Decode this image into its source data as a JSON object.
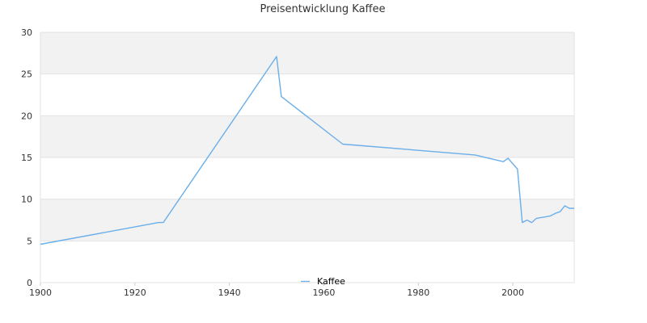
{
  "chart_data": {
    "type": "line",
    "title": "Preisentwicklung Kaffee",
    "xlabel": "",
    "ylabel": "",
    "xlim": [
      1900,
      2013
    ],
    "ylim": [
      0,
      30
    ],
    "x_ticks": [
      "1900",
      "1920",
      "1940",
      "1960",
      "1980",
      "2000"
    ],
    "y_ticks": [
      "0",
      "5",
      "10",
      "15",
      "20",
      "25",
      "30"
    ],
    "grid": "horizontal bands",
    "legend_position": "bottom",
    "series": [
      {
        "name": "Kaffee",
        "color": "#6aaeea",
        "x": [
          1900,
          1925,
          1926,
          1950,
          1951,
          1964,
          1992,
          1998,
          1999,
          2001,
          2002,
          2003,
          2004,
          2005,
          2006,
          2007,
          2008,
          2009,
          2010,
          2011,
          2012,
          2013
        ],
        "y": [
          4.6,
          7.2,
          7.2,
          27.1,
          22.3,
          16.6,
          15.3,
          14.5,
          14.9,
          13.6,
          7.2,
          7.5,
          7.2,
          7.7,
          7.8,
          7.9,
          8.0,
          8.3,
          8.5,
          9.2,
          8.9,
          8.9
        ]
      }
    ]
  }
}
